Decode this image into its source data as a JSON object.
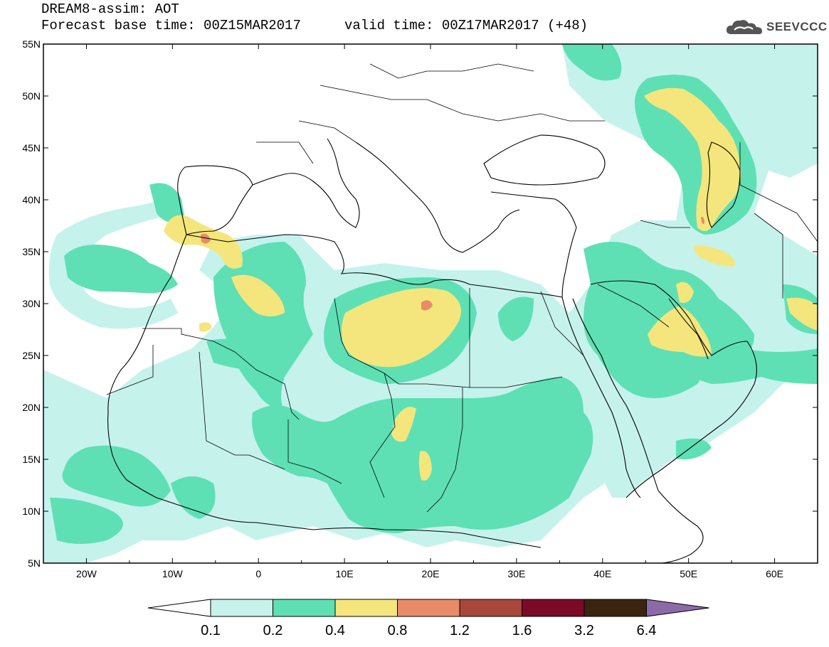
{
  "title": {
    "line1": "DREAM8-assim: AOT",
    "line2": "Forecast base time: 00Z15MAR2017",
    "valid": "valid time: 00Z17MAR2017 (+48)"
  },
  "logo": {
    "text": "SEEVCCC",
    "icon": "cloud-icon"
  },
  "map": {
    "lat_ticks": [
      "55N",
      "50N",
      "45N",
      "40N",
      "35N",
      "30N",
      "25N",
      "20N",
      "15N",
      "10N",
      "5N"
    ],
    "lon_ticks": [
      "20W",
      "10W",
      "0",
      "10E",
      "20E",
      "30E",
      "40E",
      "50E",
      "60E"
    ],
    "background": "#ffffff"
  },
  "colorbar": {
    "labels": [
      "0.1",
      "0.2",
      "0.4",
      "0.8",
      "1.2",
      "1.6",
      "3.2",
      "6.4"
    ],
    "colors": [
      "#ffffff",
      "#c6f2ec",
      "#5ee0b4",
      "#f4e67c",
      "#e88c68",
      "#a8483a",
      "#7a0a28",
      "#3a2410",
      "#8c6aa8"
    ]
  },
  "palette": {
    "c1": "#c6f2ec",
    "c2": "#5ee0b4",
    "c3": "#f4e67c",
    "c4": "#e88c68"
  }
}
